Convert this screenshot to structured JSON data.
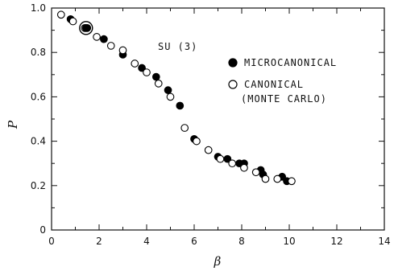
{
  "chart_data": {
    "type": "scatter",
    "annotation": "SU (3)",
    "xlabel": "β",
    "ylabel": "P",
    "xlim": [
      0,
      14
    ],
    "ylim": [
      0,
      1.0
    ],
    "xticks": [
      "0",
      "2",
      "4",
      "6",
      "8",
      "10",
      "12",
      "14"
    ],
    "yticks": [
      "0",
      "0.2",
      "0.4",
      "0.6",
      "0.8",
      "1.0"
    ],
    "grid": false,
    "legend_position": "upper-right",
    "series": [
      {
        "name": "MICROCANONICAL",
        "marker": "filled-circle",
        "color": "#000000",
        "points": [
          [
            0.8,
            0.95
          ],
          [
            1.5,
            0.91
          ],
          [
            2.2,
            0.86
          ],
          [
            3.0,
            0.79
          ],
          [
            3.8,
            0.73
          ],
          [
            4.4,
            0.69
          ],
          [
            4.9,
            0.63
          ],
          [
            5.4,
            0.56
          ],
          [
            6.0,
            0.41
          ],
          [
            7.0,
            0.33
          ],
          [
            7.4,
            0.32
          ],
          [
            7.9,
            0.3
          ],
          [
            8.1,
            0.3
          ],
          [
            8.8,
            0.27
          ],
          [
            8.9,
            0.25
          ],
          [
            9.7,
            0.24
          ],
          [
            9.9,
            0.22
          ]
        ]
      },
      {
        "name": "CANONICAL\n(MONTE CARLO)",
        "marker": "open-circle",
        "color": "#000000",
        "points": [
          [
            0.4,
            0.97
          ],
          [
            0.9,
            0.94
          ],
          [
            1.4,
            0.91
          ],
          [
            1.9,
            0.87
          ],
          [
            2.5,
            0.83
          ],
          [
            3.0,
            0.81
          ],
          [
            3.5,
            0.75
          ],
          [
            4.0,
            0.71
          ],
          [
            4.5,
            0.66
          ],
          [
            5.0,
            0.6
          ],
          [
            5.6,
            0.46
          ],
          [
            6.1,
            0.4
          ],
          [
            6.6,
            0.36
          ],
          [
            7.1,
            0.32
          ],
          [
            7.6,
            0.3
          ],
          [
            8.1,
            0.28
          ],
          [
            8.6,
            0.26
          ],
          [
            9.0,
            0.23
          ],
          [
            9.5,
            0.23
          ],
          [
            10.1,
            0.22
          ]
        ]
      }
    ],
    "highlighted_point": [
      1.45,
      0.91
    ],
    "legend_entries": [
      {
        "lines": [
          "MICROCANONICAL"
        ],
        "marker": "filled-circle"
      },
      {
        "lines": [
          "CANONICAL",
          "(MONTE CARLO)"
        ],
        "marker": "open-circle"
      }
    ]
  }
}
